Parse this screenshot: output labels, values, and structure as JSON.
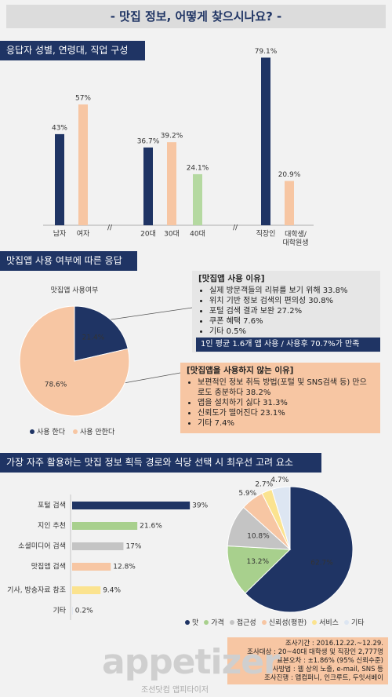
{
  "title": "- 맛집 정보, 어떻게 찾으시나요? -",
  "chart_data": [
    {
      "type": "bar",
      "title": "응답자 성별, 연령대, 직업 구성",
      "categories": [
        "남자",
        "여자",
        "20대",
        "30대",
        "40대",
        "직장인",
        "대학생/\n대학원생"
      ],
      "values": [
        43,
        57,
        36.7,
        39.2,
        24.1,
        79.1,
        20.9
      ],
      "value_labels": [
        "43%",
        "57%",
        "36.7%",
        "39.2%",
        "24.1%",
        "79.1%",
        "20.9%"
      ],
      "colors": [
        "#1f3464",
        "#f7c6a3",
        "#1f3464",
        "#f7c6a3",
        "#b5d9a1",
        "#1f3464",
        "#f7c6a3"
      ]
    },
    {
      "type": "pie",
      "title": "맛집앱 사용 여부에 따른 응답",
      "subtitle": "맛집앱 사용여부",
      "categories": [
        "사용 한다",
        "사용 안한다"
      ],
      "values": [
        21.4,
        78.6
      ],
      "value_labels": [
        "21.4%",
        "78.6%"
      ],
      "colors": [
        "#1f3464",
        "#f7c6a3"
      ]
    },
    {
      "type": "hbar",
      "title": "가장 자주 활용하는 맛집 정보 획득 경로와 식당 선택 시 최우선 고려 요소",
      "categories": [
        "포털 검색",
        "지인 추천",
        "소셜미디어 검색",
        "맛집앱 검색",
        "기사, 방송자료 참조",
        "기타"
      ],
      "values": [
        39,
        21.6,
        17,
        12.8,
        9.4,
        0.2
      ],
      "value_labels": [
        "39%",
        "21.6%",
        "17%",
        "12.8%",
        "9.4%",
        "0.2%"
      ],
      "colors": [
        "#1f3464",
        "#a8d08d",
        "#c4c4c4",
        "#f7c6a3",
        "#fbe38f",
        "#dde6f2"
      ]
    },
    {
      "type": "pie",
      "categories": [
        "맛",
        "가격",
        "접근성",
        "신뢰성(평판)",
        "서비스",
        "기타"
      ],
      "values": [
        62.7,
        13.2,
        10.8,
        5.9,
        2.7,
        4.7
      ],
      "value_labels": [
        "62.7%",
        "13.2%",
        "10.8%",
        "5.9%",
        "2.7%",
        "4.7%"
      ],
      "colors": [
        "#1f3464",
        "#a8d08d",
        "#c4c4c4",
        "#f7c6a3",
        "#fbe38f",
        "#dde6f2"
      ]
    }
  ],
  "use_reasons": {
    "title": "[맛집앱 사용 이유]",
    "items": [
      "실제 방문객들의 리뷰를 보기 위해 33.8%",
      "위치 기반 정보 검색의 편의성 30.8%",
      "포털 검색 결과 보완 27.2%",
      "쿠폰 혜택 7.6%",
      "기타 0.5%"
    ],
    "note": "1인 평균 1.6개 앱 사용 / 사용후 70.7%가 만족"
  },
  "nonuse_reasons": {
    "title": "[맛집앱을 사용하지 않는 이유]",
    "items": [
      "보편적인 정보 취득 방법(포털 및 SNS검색 등) 만으로도 충분하다 38.2%",
      "앱을 설치하기 싫다 31.3%",
      "신뢰도가 떨어진다 23.1%",
      "기타 7.4%"
    ]
  },
  "survey_info": [
    "조사기간 : 2016.12.22.~12.29.",
    "조사대상 : 20~40대 대학생 및 직장인 2,777명",
    "표본오차 : ±1.86% (95% 신뢰수준)",
    "조사방법 : 웹 상의 노출, e-mail, SNS 등",
    "조사진행 : 앱컴퍼니, 인크루트, 두잇서베이"
  ],
  "logo": "appetizer",
  "logo_sub": "조선닷컴 앱피타이저"
}
